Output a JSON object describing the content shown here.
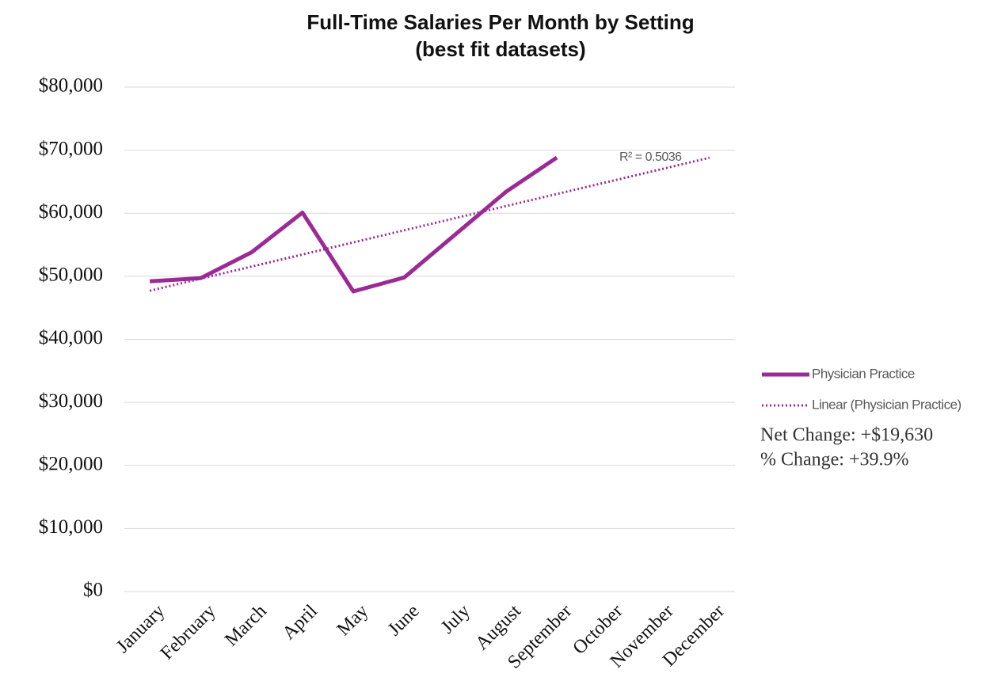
{
  "chart_data": {
    "type": "line",
    "title": "Full-Time Salaries Per Month by Setting",
    "subtitle": "(best fit datasets)",
    "categories": [
      "January",
      "February",
      "March",
      "April",
      "May",
      "June",
      "July",
      "August",
      "September",
      "October",
      "November",
      "December"
    ],
    "series": [
      {
        "name": "Physician Practice",
        "color": "#9b2a96",
        "style": "solid",
        "values": [
          49200,
          49700,
          53800,
          60100,
          47600,
          49800,
          56600,
          63400,
          68830,
          null,
          null,
          null
        ]
      },
      {
        "name": "Linear (Physician Practice)",
        "color": "#9b2a96",
        "style": "dotted",
        "values": [
          47700,
          49620,
          51540,
          53450,
          55370,
          57290,
          59210,
          61130,
          63050,
          64960,
          66880,
          68800
        ]
      }
    ],
    "ylim": [
      0,
      80000
    ],
    "yticks": [
      {
        "value": 0,
        "label": "$0"
      },
      {
        "value": 10000,
        "label": "$10,000"
      },
      {
        "value": 20000,
        "label": "$20,000"
      },
      {
        "value": 30000,
        "label": "$30,000"
      },
      {
        "value": 40000,
        "label": "$40,000"
      },
      {
        "value": 50000,
        "label": "$50,000"
      },
      {
        "value": 60000,
        "label": "$60,000"
      },
      {
        "value": 70000,
        "label": "$70,000"
      },
      {
        "value": 80000,
        "label": "$80,000"
      }
    ],
    "grid": true,
    "legend": "right",
    "annotations": [
      "R² = 0.5036",
      "Net Change: +$19,630",
      "% Change: +39.9%"
    ]
  }
}
